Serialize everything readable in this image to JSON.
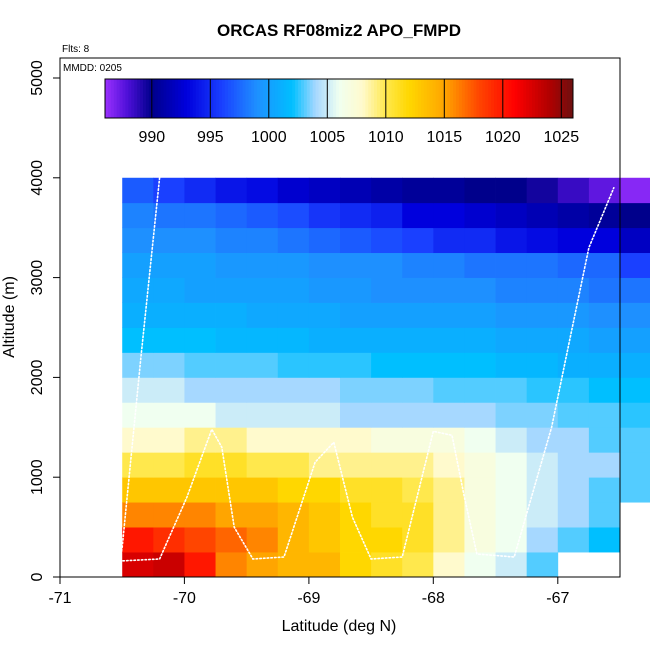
{
  "chart_data": {
    "type": "heatmap",
    "title": "ORCAS RF08miz2 APO_FMPD",
    "xlabel": "Latitude (deg N)",
    "ylabel": "Altitude (m)",
    "xlim": [
      -71,
      -66.5
    ],
    "ylim": [
      0,
      5200
    ],
    "xticks": [
      -71,
      -70,
      -69,
      -68,
      -67
    ],
    "xtick_labels": [
      "-71",
      "-70",
      "-69",
      "-68",
      "-67"
    ],
    "yticks": [
      0,
      1000,
      2000,
      3000,
      4000,
      5000
    ],
    "ytick_labels": [
      "0",
      "1000",
      "2000",
      "3000",
      "4000",
      "5000"
    ],
    "note_flights": "Flts: 8",
    "note_date": "MMDD: 0205",
    "colorbar": {
      "min": 986,
      "max": 1026,
      "ticks": [
        990,
        995,
        1000,
        1005,
        1010,
        1015,
        1020,
        1025
      ],
      "tick_labels": [
        "990",
        "995",
        "1000",
        "1005",
        "1010",
        "1015",
        "1020",
        "1025"
      ],
      "palette": [
        {
          "v": 986,
          "c": "#9b30ff"
        },
        {
          "v": 988,
          "c": "#4b0fd6"
        },
        {
          "v": 990,
          "c": "#00008b"
        },
        {
          "v": 993,
          "c": "#0000dd"
        },
        {
          "v": 996,
          "c": "#1a40ff"
        },
        {
          "v": 999,
          "c": "#1e90ff"
        },
        {
          "v": 1002,
          "c": "#00bfff"
        },
        {
          "v": 1004,
          "c": "#a6d8ff"
        },
        {
          "v": 1006,
          "c": "#f0fff0"
        },
        {
          "v": 1008,
          "c": "#fffacd"
        },
        {
          "v": 1010,
          "c": "#ffe84d"
        },
        {
          "v": 1012,
          "c": "#ffd700"
        },
        {
          "v": 1015,
          "c": "#ffa500"
        },
        {
          "v": 1018,
          "c": "#ff4500"
        },
        {
          "v": 1021,
          "c": "#ff0000"
        },
        {
          "v": 1024,
          "c": "#b00000"
        },
        {
          "v": 1026,
          "c": "#6e1010"
        }
      ]
    },
    "grid": {
      "x0": -70.5,
      "dx": 0.25,
      "y0": 0,
      "dy": 250
    },
    "cells": [
      [
        1022.5,
        1023,
        1020,
        1016,
        1015,
        1014,
        1014,
        1012,
        1011,
        1010,
        1008,
        1006,
        1005,
        1003,
        null,
        null,
        null,
        null
      ],
      [
        1020,
        1019,
        1018,
        1017,
        1016,
        1014,
        1013,
        1012,
        1012,
        1011,
        1009,
        1007,
        1006,
        1004,
        1003,
        1002,
        null,
        null
      ],
      [
        1016,
        1016,
        1016,
        1015,
        1015,
        1014,
        1013,
        1012,
        1011,
        1011,
        1009,
        1007,
        1006,
        1005,
        1004,
        1003,
        null,
        null
      ],
      [
        1013,
        1013,
        1013,
        1013,
        1013,
        1012,
        1012,
        1011,
        1011,
        1010,
        1009,
        1007,
        1006,
        1005,
        1004,
        1003,
        1003,
        1003
      ],
      [
        1010,
        1010,
        1011,
        1011,
        1010,
        1010,
        1009,
        1009,
        1009,
        1009,
        1008,
        1007,
        1006,
        1005,
        1004,
        1004,
        1003,
        1003
      ],
      [
        1008,
        1008,
        1009,
        1009,
        1008,
        1008,
        1008,
        1008,
        1007,
        1007,
        1007,
        1006,
        1005,
        1004,
        1004,
        1003,
        1003,
        1003
      ],
      [
        1006,
        1006,
        1006,
        1005,
        1005,
        1005,
        1005,
        1004,
        1004,
        1004,
        1004,
        1004,
        1003.5,
        1003.5,
        1003,
        1003,
        1002.5,
        1002.5
      ],
      [
        1005,
        1005,
        1004,
        1004,
        1004,
        1004,
        1004,
        1003.5,
        1003.5,
        1003.5,
        1003,
        1003,
        1003,
        1002.5,
        1002.5,
        1002,
        1002,
        1002
      ],
      [
        1003.5,
        1003.5,
        1003,
        1003,
        1003,
        1002.5,
        1002.5,
        1002.5,
        1002,
        1002,
        1002,
        1002,
        1001.5,
        1001.5,
        1001,
        1001,
        1001,
        null
      ],
      [
        1002,
        1002,
        1002,
        1001.5,
        1001.5,
        1001.5,
        1001,
        1001,
        1001,
        1001,
        1001,
        1001,
        1000.5,
        1000.5,
        1000.5,
        1000,
        1000,
        null
      ],
      [
        1001,
        1001,
        1001,
        1001,
        1000.5,
        1000.5,
        1000.5,
        1000,
        1000,
        1000,
        1000,
        1000,
        999.5,
        999.5,
        999.5,
        999,
        999,
        999
      ],
      [
        1000.5,
        1000.5,
        1000,
        1000,
        1000,
        1000,
        999.5,
        999.5,
        999,
        999,
        999,
        999,
        998.5,
        998.5,
        998.5,
        998,
        998,
        997
      ],
      [
        1000,
        1000,
        1000,
        999.5,
        999.5,
        999.5,
        999,
        999,
        999,
        998.5,
        998.5,
        998,
        998,
        998,
        997.5,
        997.5,
        996,
        995
      ],
      [
        999,
        999,
        999,
        998.5,
        998.5,
        998,
        997.5,
        997,
        996.5,
        996,
        995,
        995,
        994,
        993.5,
        993,
        993,
        992,
        991
      ],
      [
        998.5,
        998,
        998,
        997.5,
        997,
        996.5,
        995.5,
        995,
        994.5,
        993,
        993,
        992.5,
        992,
        991.5,
        991,
        990.5,
        990,
        989
      ],
      [
        997,
        996,
        995,
        994,
        993.5,
        992.5,
        992,
        991.5,
        991,
        990.5,
        990.5,
        990,
        990,
        989.5,
        988.5,
        987.5,
        986.5,
        986
      ]
    ],
    "flight_track": [
      [
        -70.2,
        4000
      ],
      [
        -70.35,
        2200
      ],
      [
        -70.5,
        300
      ],
      [
        -70.52,
        160
      ],
      [
        -70.2,
        180
      ],
      [
        -69.98,
        800
      ],
      [
        -69.78,
        1480
      ],
      [
        -69.7,
        1300
      ],
      [
        -69.6,
        500
      ],
      [
        -69.45,
        180
      ],
      [
        -69.2,
        200
      ],
      [
        -68.95,
        1150
      ],
      [
        -68.8,
        1350
      ],
      [
        -68.65,
        600
      ],
      [
        -68.5,
        180
      ],
      [
        -68.25,
        200
      ],
      [
        -68.0,
        1460
      ],
      [
        -67.85,
        1420
      ],
      [
        -67.75,
        800
      ],
      [
        -67.65,
        230
      ],
      [
        -67.35,
        200
      ],
      [
        -67.05,
        1500
      ],
      [
        -66.9,
        2400
      ],
      [
        -66.75,
        3300
      ],
      [
        -66.55,
        3900
      ]
    ]
  }
}
